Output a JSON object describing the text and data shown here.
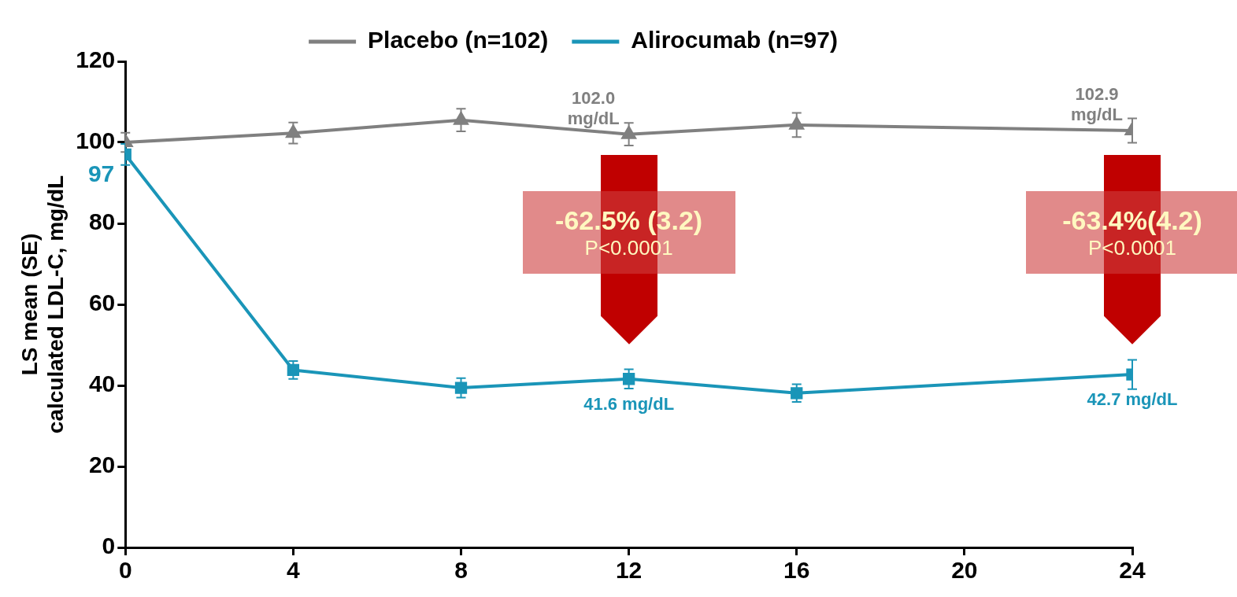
{
  "chart_data": {
    "type": "line",
    "ylabel": "LS mean (SE)\ncalculated LDL-C, mg/dL",
    "x": [
      0,
      4,
      8,
      12,
      16,
      24
    ],
    "xlim": [
      0,
      24
    ],
    "xticks": [
      0,
      4,
      8,
      12,
      16,
      20,
      24
    ],
    "ylim": [
      0,
      120
    ],
    "yticks": [
      0,
      20,
      40,
      60,
      80,
      100,
      120
    ],
    "grid": false,
    "legend": "top",
    "series": [
      {
        "name": "Placebo (n=102)",
        "color": "#808080",
        "marker": "triangle",
        "values": [
          100,
          102.3,
          105.5,
          102.0,
          104.3,
          102.9
        ],
        "errors": [
          2.4,
          2.6,
          2.8,
          2.8,
          3.0,
          3.0
        ]
      },
      {
        "name": "Alirocumab (n=97)",
        "color": "#1a95b8",
        "marker": "square",
        "values": [
          97,
          43.8,
          39.4,
          41.6,
          38.1,
          42.7
        ],
        "errors": [
          2.6,
          2.2,
          2.4,
          2.4,
          2.2,
          3.6
        ]
      }
    ],
    "annotations": [
      {
        "text": "97",
        "x": 0,
        "y": 97
      },
      {
        "text": "102.0 mg/dL",
        "x": 12,
        "y": 102.0
      },
      {
        "text": "102.9 mg/dL",
        "x": 24,
        "y": 102.9
      },
      {
        "text": "41.6 mg/dL",
        "x": 12,
        "y": 41.6
      },
      {
        "text": "42.7 mg/dL",
        "x": 24,
        "y": 42.7
      },
      "-62.5% (3.2)",
      "P<0.0001",
      "-63.4%(4.2)",
      "P<0.0001"
    ]
  }
}
